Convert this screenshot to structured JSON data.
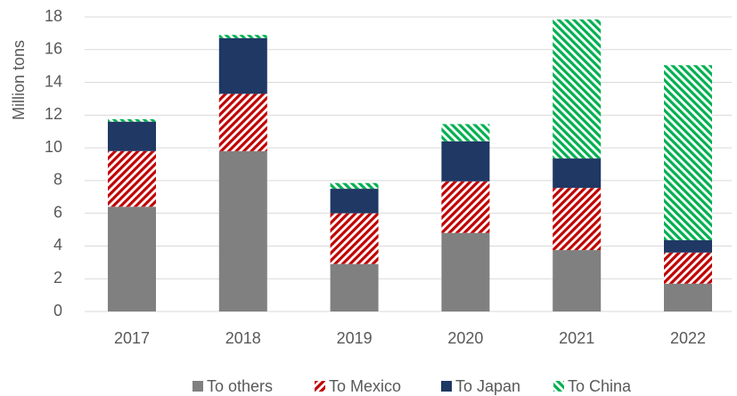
{
  "chart_data": {
    "type": "bar",
    "stacked": true,
    "y_label": "Million tons",
    "categories": [
      "2017",
      "2018",
      "2019",
      "2020",
      "2021",
      "2022"
    ],
    "series": [
      {
        "name": "To others",
        "color": "#808080",
        "pattern": "solid",
        "values": [
          6.4,
          9.8,
          2.9,
          4.8,
          3.75,
          1.7
        ]
      },
      {
        "name": "To Mexico",
        "color": "#c00000",
        "pattern": "hatch",
        "values": [
          3.4,
          3.5,
          3.1,
          3.15,
          3.8,
          1.9
        ]
      },
      {
        "name": "To Japan",
        "color": "#1f3864",
        "pattern": "solid",
        "values": [
          1.8,
          3.4,
          1.5,
          2.45,
          1.8,
          0.75
        ]
      },
      {
        "name": "To China",
        "color": "#00b050",
        "pattern": "hatch",
        "values": [
          0.15,
          0.2,
          0.35,
          1.05,
          8.5,
          10.7
        ]
      }
    ],
    "ylim": [
      0,
      18
    ],
    "yticks": [
      0,
      2,
      4,
      6,
      8,
      10,
      12,
      14,
      16,
      18
    ],
    "grid": true,
    "legend": "bottom"
  }
}
